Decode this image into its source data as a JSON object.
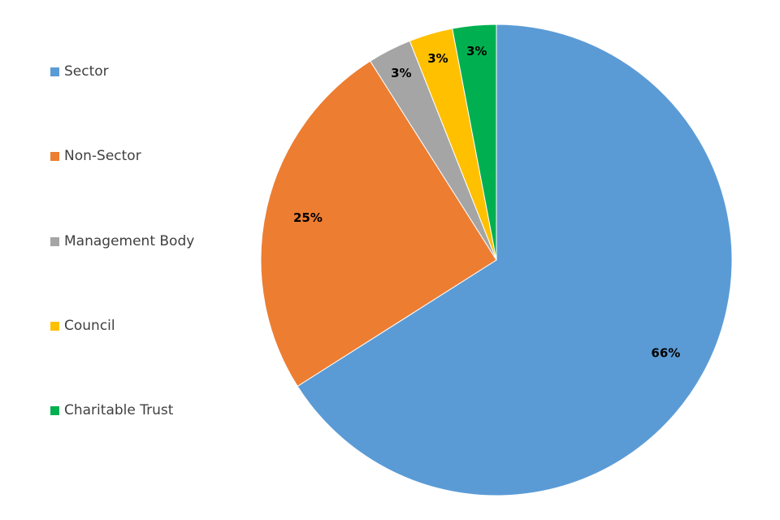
{
  "chart_data": {
    "type": "pie",
    "categories": [
      "Sector",
      "Non-Sector",
      "Management Body",
      "Council",
      "Charitable Trust"
    ],
    "values": [
      66,
      25,
      3,
      3,
      3
    ],
    "value_labels": [
      "66%",
      "25%",
      "3%",
      "3%",
      "3%"
    ],
    "colors": [
      "#5B9BD5",
      "#ED7D31",
      "#A5A5A5",
      "#FFC000",
      "#00B050"
    ],
    "legend_position": "left",
    "title": ""
  }
}
